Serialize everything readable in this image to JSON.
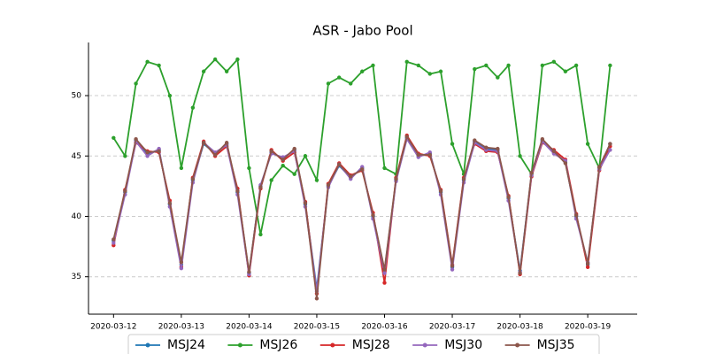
{
  "chart_data": {
    "type": "line",
    "title": "ASR - Jabo Pool",
    "x": [
      0,
      0.17,
      0.33,
      0.5,
      0.67,
      0.83,
      1,
      1.17,
      1.33,
      1.5,
      1.67,
      1.83,
      2,
      2.17,
      2.33,
      2.5,
      2.67,
      2.83,
      3,
      3.17,
      3.33,
      3.5,
      3.67,
      3.83,
      4,
      4.17,
      4.33,
      4.5,
      4.67,
      4.83,
      5,
      5.17,
      5.33,
      5.5,
      5.67,
      5.83,
      6,
      6.17,
      6.33,
      6.5,
      6.67,
      6.83,
      7,
      7.17,
      7.33
    ],
    "series": [
      {
        "name": "MSJ24",
        "color": "#1f77b4",
        "values": [
          38,
          42,
          46.3,
          45.2,
          45.5,
          41,
          36,
          43,
          46,
          45.2,
          46,
          42,
          35.3,
          42.5,
          45.3,
          44.8,
          45.5,
          41,
          34,
          42.5,
          44.2,
          43.2,
          44,
          40,
          35.5,
          43,
          46.5,
          45,
          45.2,
          42,
          35.8,
          43,
          46.2,
          45.6,
          45.5,
          41.5,
          35.5,
          43.5,
          46.3,
          45.3,
          44.5,
          40,
          36,
          44,
          46
        ]
      },
      {
        "name": "MSJ26",
        "color": "#2ca02c",
        "values": [
          46.5,
          45,
          51,
          52.8,
          52.5,
          50,
          44,
          49,
          52,
          53,
          52,
          53,
          44,
          38.5,
          43,
          44.2,
          43.5,
          45,
          43,
          51,
          51.5,
          51,
          52,
          52.5,
          44,
          43.5,
          52.8,
          52.5,
          51.8,
          52,
          46,
          43.5,
          52.2,
          52.5,
          51.5,
          52.5,
          45,
          43.5,
          52.5,
          52.8,
          52,
          52.5,
          46,
          44,
          52.5
        ]
      },
      {
        "name": "MSJ28",
        "color": "#d62728",
        "values": [
          37.6,
          42.2,
          46.1,
          45.4,
          45.3,
          41.3,
          35.8,
          43.2,
          46.2,
          45,
          45.8,
          42.3,
          35.1,
          42.3,
          45.5,
          44.6,
          45.3,
          41.2,
          33.6,
          42.7,
          44.4,
          43.4,
          43.8,
          40.3,
          34.5,
          43.2,
          46.7,
          45.2,
          45,
          42.2,
          36,
          43.2,
          46,
          45.4,
          45.3,
          41.7,
          35.2,
          43.3,
          46.1,
          45.5,
          44.7,
          40.2,
          35.8,
          43.8,
          45.8
        ]
      },
      {
        "name": "MSJ30",
        "color": "#9467bd",
        "values": [
          37.8,
          41.8,
          46.2,
          45,
          45.6,
          40.8,
          35.7,
          42.8,
          46.1,
          45.3,
          45.9,
          41.8,
          35.2,
          42.6,
          45.2,
          44.9,
          45.4,
          40.8,
          33.8,
          42.4,
          44.3,
          43.1,
          44.1,
          39.8,
          35.3,
          42.9,
          46.4,
          44.9,
          45.3,
          41.8,
          35.6,
          42.8,
          46.1,
          45.5,
          45.4,
          41.3,
          35.4,
          43.4,
          46.2,
          45.2,
          44.6,
          39.8,
          36.2,
          43.9,
          45.5
        ]
      },
      {
        "name": "MSJ35",
        "color": "#8c564b",
        "values": [
          38.1,
          42.1,
          46.4,
          45.3,
          45.4,
          41.1,
          36.2,
          43.1,
          46.1,
          45.1,
          46.1,
          42.1,
          35.4,
          42.4,
          45.4,
          44.7,
          45.6,
          41.1,
          33.2,
          42.6,
          44.3,
          43.3,
          43.9,
          40.1,
          35.6,
          43.1,
          46.6,
          45.1,
          45.1,
          42.1,
          35.9,
          43.1,
          46.3,
          45.7,
          45.6,
          41.6,
          35.3,
          43.6,
          46.4,
          45.4,
          44.4,
          40.1,
          36.1,
          44.1,
          46
        ]
      }
    ],
    "xlim": [
      -0.37,
      7.73
    ],
    "xticks": [
      {
        "value": 0,
        "label": "2020-03-12"
      },
      {
        "value": 1,
        "label": "2020-03-13"
      },
      {
        "value": 2,
        "label": "2020-03-14"
      },
      {
        "value": 3,
        "label": "2020-03-15"
      },
      {
        "value": 4,
        "label": "2020-03-16"
      },
      {
        "value": 5,
        "label": "2020-03-17"
      },
      {
        "value": 6,
        "label": "2020-03-18"
      },
      {
        "value": 7,
        "label": "2020-03-19"
      }
    ],
    "ylim": [
      31.9,
      54.4
    ],
    "yticks": [
      35,
      40,
      45,
      50
    ],
    "grid": true,
    "legend": "bottom"
  }
}
